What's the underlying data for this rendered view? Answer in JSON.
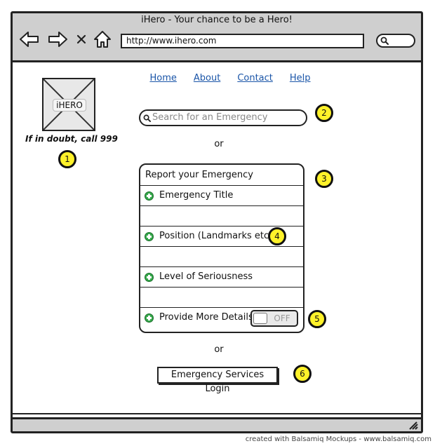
{
  "window": {
    "title": "iHero - Your chance to be a Hero!",
    "address": "http://www.ihero.com"
  },
  "logo": {
    "label": "iHERO"
  },
  "tagline": "If in doubt, call 999",
  "links": [
    {
      "label": "Home"
    },
    {
      "label": "About"
    },
    {
      "label": "Contact"
    },
    {
      "label": "Help"
    }
  ],
  "search": {
    "placeholder": "Search for an Emergency"
  },
  "separator": "or",
  "report": {
    "heading": "Report your Emergency",
    "rows": [
      {
        "label": "Emergency Title"
      },
      {
        "label": "Position (Landmarks etc)"
      },
      {
        "label": "Level of Seriousness"
      },
      {
        "label": "Provide More Details"
      }
    ],
    "toggle_state": "OFF"
  },
  "login_button": "Emergency Services Login",
  "markers": [
    "1",
    "2",
    "3",
    "4",
    "5",
    "6"
  ],
  "footer": "created with Balsamiq Mockups - www.balsamiq.com",
  "colors": {
    "frame": "#cfcfcf",
    "link": "#1a55a8",
    "marker": "#fff22a",
    "plus_icon": "#34a84a"
  }
}
